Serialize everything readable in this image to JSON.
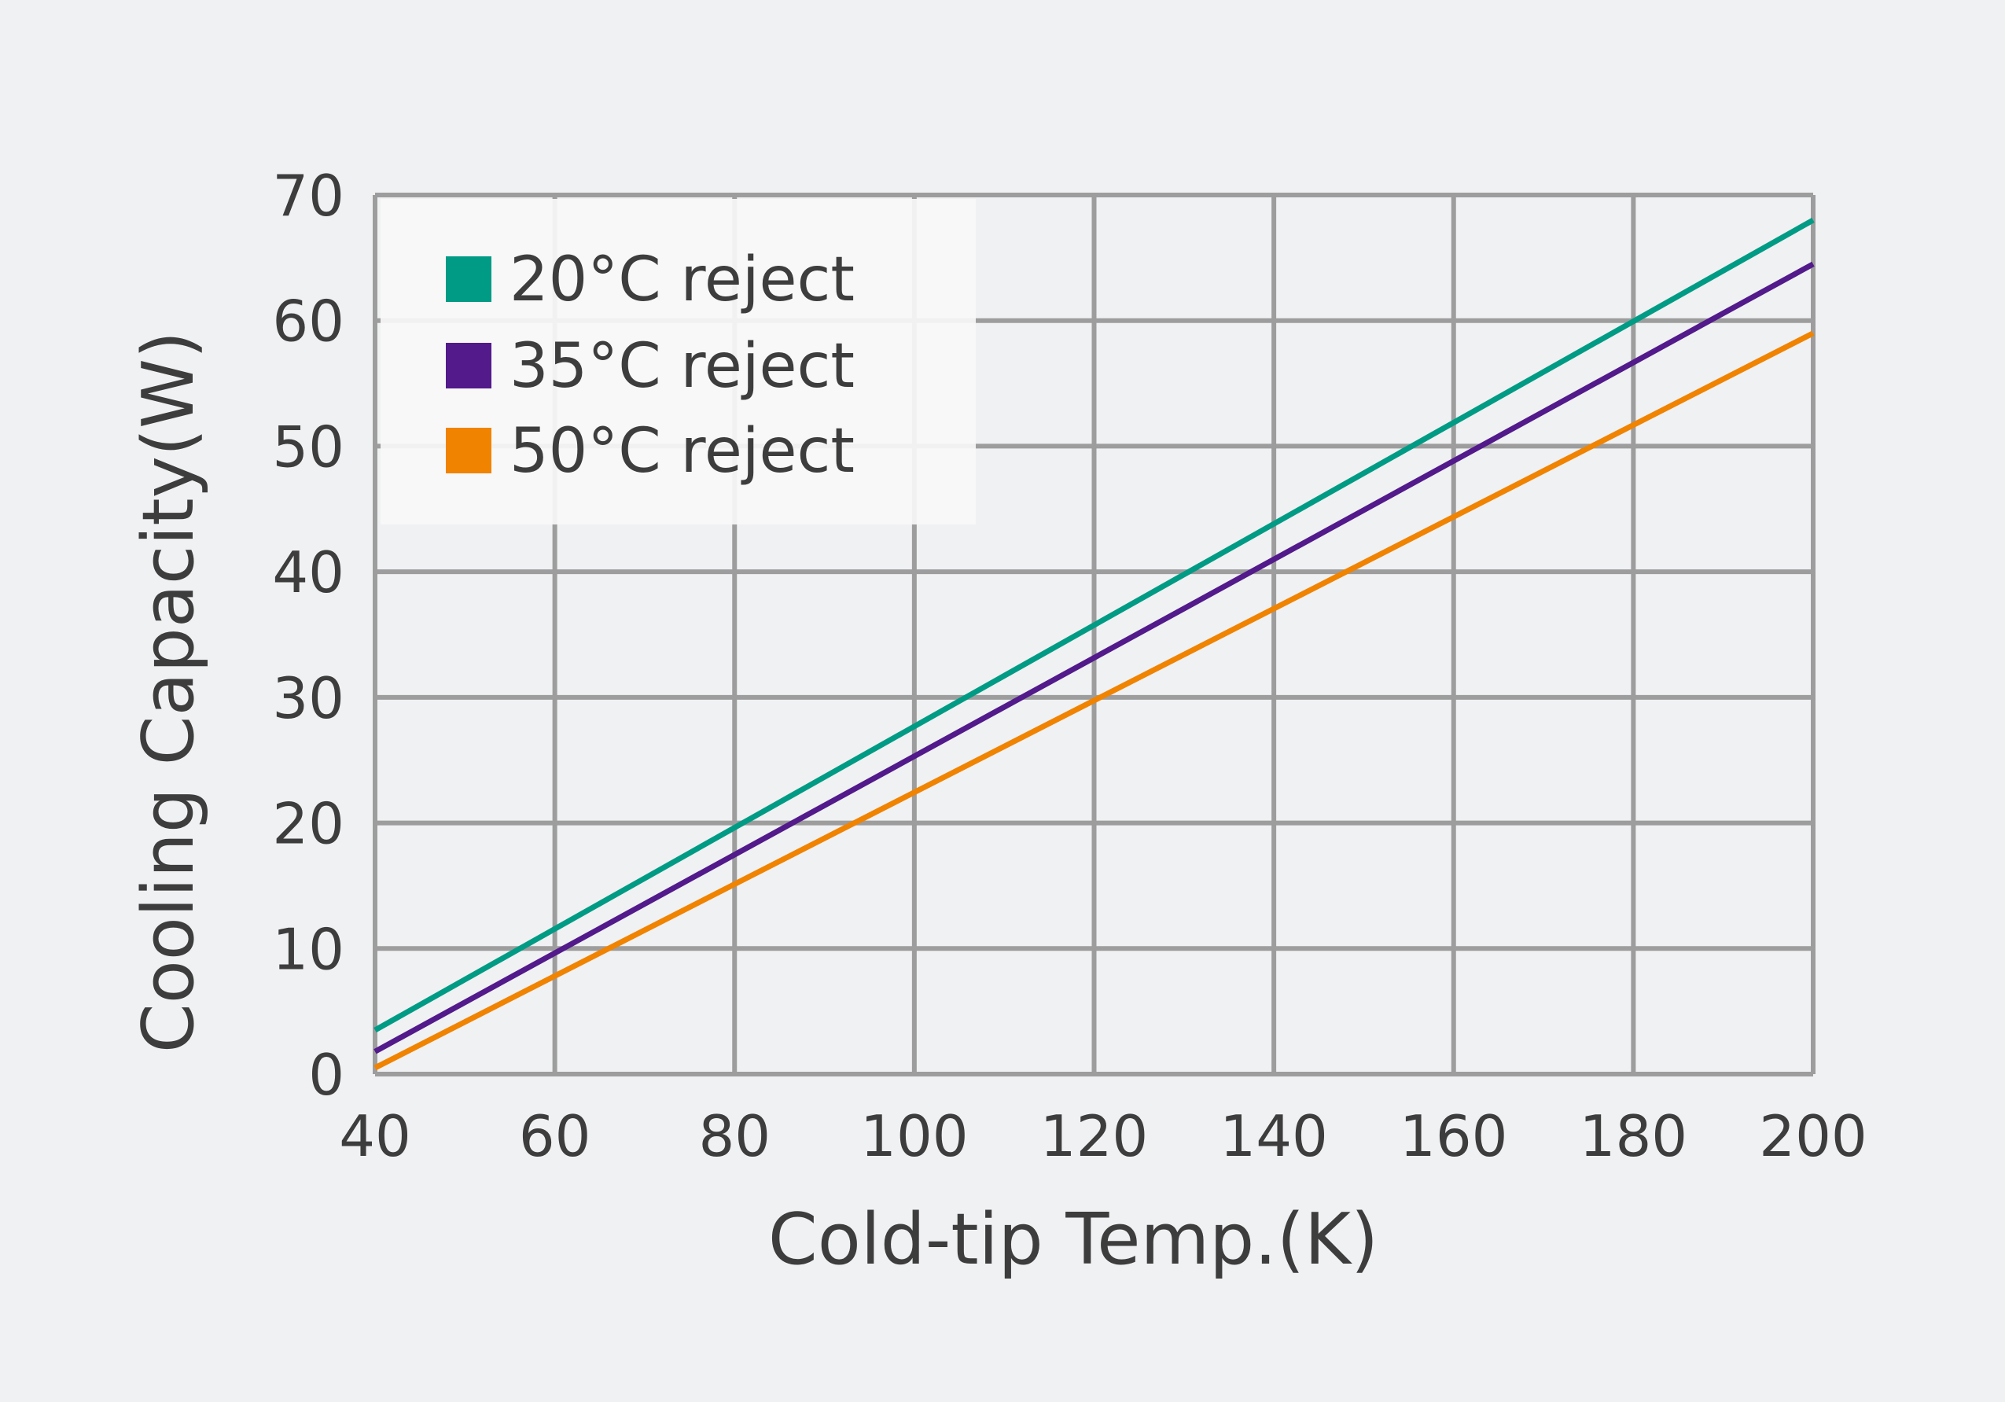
{
  "colors": {
    "background": "#f0f1f3",
    "grid": "#9d9d9d",
    "text": "#3d3d3d",
    "legend_bg": "#f9f9fa"
  },
  "chart_data": {
    "type": "line",
    "xlabel": "Cold-tip Temp.(K)",
    "ylabel": "Cooling Capacity(W)",
    "xlim": [
      40,
      200
    ],
    "ylim": [
      0,
      70
    ],
    "xticks": [
      40,
      60,
      80,
      100,
      120,
      140,
      160,
      180,
      200
    ],
    "yticks": [
      0,
      10,
      20,
      30,
      40,
      50,
      60,
      70
    ],
    "grid": true,
    "legend_position": "top-left",
    "series": [
      {
        "name": "20°C reject",
        "color": "#009b84",
        "x": [
          40,
          200
        ],
        "y": [
          3.5,
          68
        ]
      },
      {
        "name": "35°C reject",
        "color": "#521a8a",
        "x": [
          40,
          200
        ],
        "y": [
          1.8,
          64.5
        ]
      },
      {
        "name": "50°C reject",
        "color": "#f08300",
        "x": [
          40,
          200
        ],
        "y": [
          0.5,
          59
        ]
      }
    ]
  }
}
